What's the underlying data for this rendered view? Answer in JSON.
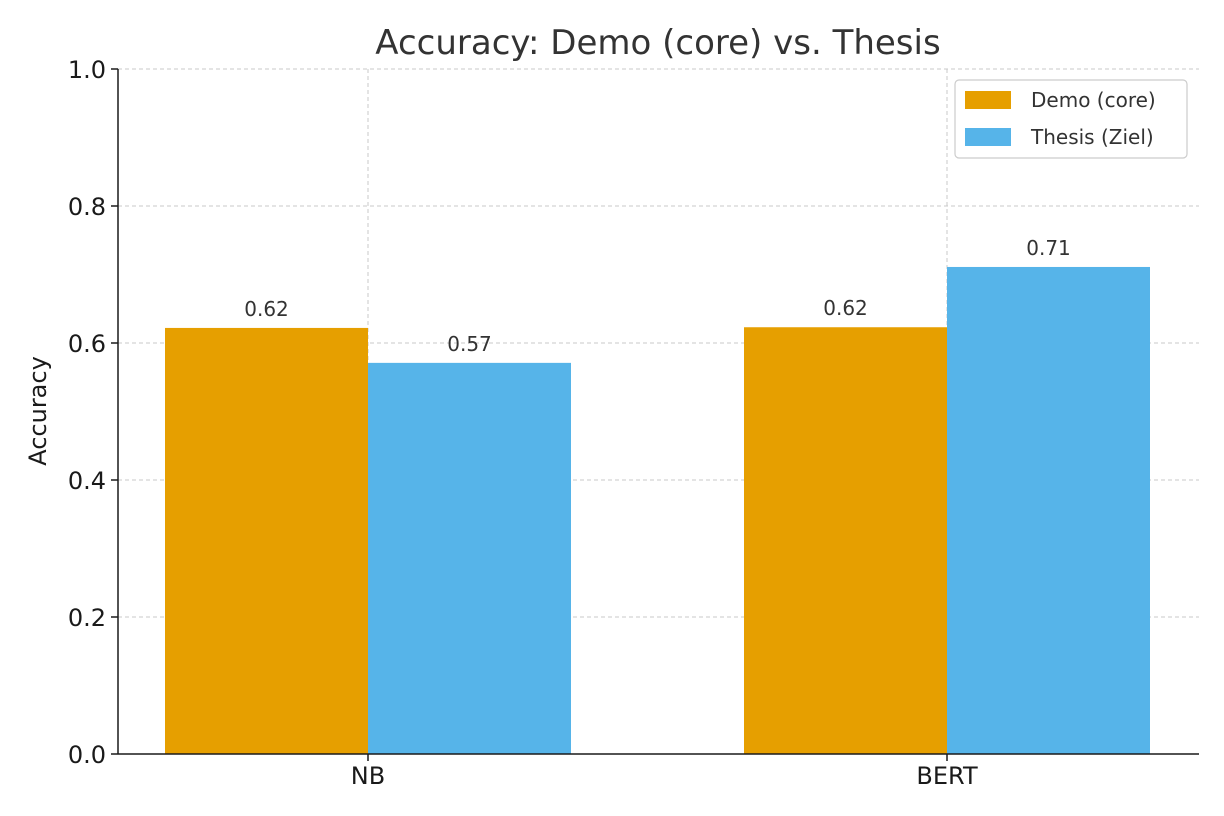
{
  "chart_data": {
    "type": "bar",
    "title": "Accuracy: Demo (core) vs. Thesis",
    "xlabel": "",
    "ylabel": "Accuracy",
    "categories": [
      "NB",
      "BERT"
    ],
    "series": [
      {
        "name": "Demo (core)",
        "values": [
          0.622,
          0.623
        ],
        "labels": [
          "0.62",
          "0.62"
        ],
        "color": "#E69F00"
      },
      {
        "name": "Thesis (Ziel)",
        "values": [
          0.571,
          0.711
        ],
        "labels": [
          "0.57",
          "0.71"
        ],
        "color": "#56B4E9"
      }
    ],
    "ylim": [
      0,
      1.0
    ],
    "yticks": [
      0.0,
      0.2,
      0.4,
      0.6,
      0.8,
      1.0
    ],
    "ytick_labels": [
      "0.0",
      "0.2",
      "0.4",
      "0.6",
      "0.8",
      "1.0"
    ],
    "grid": true,
    "legend_position": "top-right"
  }
}
